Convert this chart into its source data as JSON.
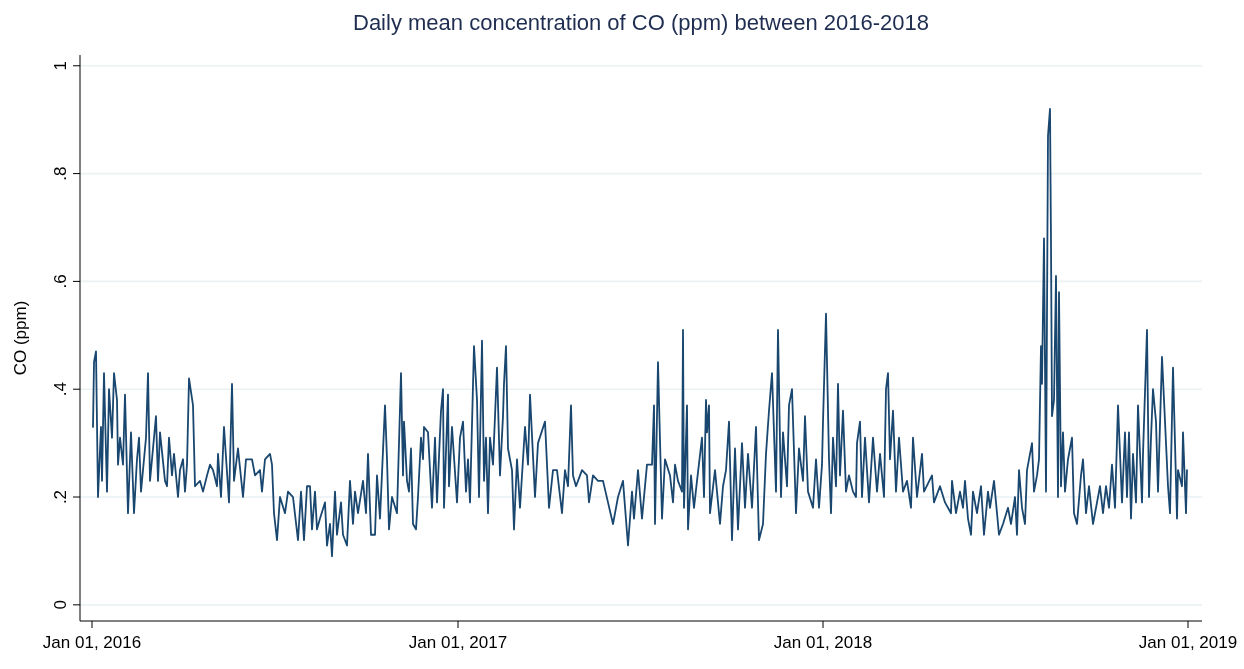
{
  "chart_data": {
    "type": "line",
    "title": "Daily mean concentration of CO (ppm) between 2016-2018",
    "ylabel": "CO (ppm)",
    "x": [
      "2016-01-02",
      "2016-01-03",
      "2016-01-05",
      "2016-01-07",
      "2016-01-10",
      "2016-01-11",
      "2016-01-13",
      "2016-01-16",
      "2016-01-18",
      "2016-01-21",
      "2016-01-23",
      "2016-01-26",
      "2016-01-27",
      "2016-01-29",
      "2016-02-01",
      "2016-02-03",
      "2016-02-06",
      "2016-02-09",
      "2016-02-12",
      "2016-02-15",
      "2016-02-17",
      "2016-02-19",
      "2016-02-24",
      "2016-02-26",
      "2016-02-28",
      "2016-03-02",
      "2016-03-05",
      "2016-03-07",
      "2016-03-09",
      "2016-03-14",
      "2016-03-16",
      "2016-03-18",
      "2016-03-21",
      "2016-03-23",
      "2016-03-27",
      "2016-03-29",
      "2016-04-01",
      "2016-04-03",
      "2016-04-05",
      "2016-04-07",
      "2016-04-11",
      "2016-04-13",
      "2016-04-18",
      "2016-04-21",
      "2016-04-25",
      "2016-04-28",
      "2016-05-01",
      "2016-05-05",
      "2016-05-06",
      "2016-05-09",
      "2016-05-12",
      "2016-05-17",
      "2016-05-20",
      "2016-05-22",
      "2016-05-26",
      "2016-05-31",
      "2016-06-03",
      "2016-06-09",
      "2016-06-12",
      "2016-06-17",
      "2016-06-19",
      "2016-06-22",
      "2016-06-27",
      "2016-06-29",
      "2016-07-01",
      "2016-07-04",
      "2016-07-07",
      "2016-07-12",
      "2016-07-15",
      "2016-07-20",
      "2016-07-25",
      "2016-07-28",
      "2016-07-31",
      "2016-08-03",
      "2016-08-06",
      "2016-08-08",
      "2016-08-11",
      "2016-08-13",
      "2016-08-16",
      "2016-08-21",
      "2016-08-23",
      "2016-08-26",
      "2016-08-28",
      "2016-08-31",
      "2016-09-02",
      "2016-09-06",
      "2016-09-08",
      "2016-09-12",
      "2016-09-15",
      "2016-09-18",
      "2016-09-20",
      "2016-09-23",
      "2016-09-28",
      "2016-10-01",
      "2016-10-03",
      "2016-10-06",
      "2016-10-10",
      "2016-10-12",
      "2016-10-15",
      "2016-10-20",
      "2016-10-22",
      "2016-10-24",
      "2016-10-27",
      "2016-11-01",
      "2016-11-05",
      "2016-11-07",
      "2016-11-08",
      "2016-11-11",
      "2016-11-13",
      "2016-11-15",
      "2016-11-17",
      "2016-11-20",
      "2016-11-22",
      "2016-11-25",
      "2016-11-27",
      "2016-11-28",
      "2016-12-02",
      "2016-12-06",
      "2016-12-09",
      "2016-12-11",
      "2016-12-15",
      "2016-12-17",
      "2016-12-18",
      "2016-12-22",
      "2016-12-23",
      "2016-12-26",
      "2016-12-31",
      "2017-01-03",
      "2017-01-06",
      "2017-01-09",
      "2017-01-11",
      "2017-01-13",
      "2017-01-17",
      "2017-01-20",
      "2017-01-22",
      "2017-01-25",
      "2017-01-27",
      "2017-01-29",
      "2017-01-31",
      "2017-02-02",
      "2017-02-05",
      "2017-02-09",
      "2017-02-12",
      "2017-02-15",
      "2017-02-16",
      "2017-02-18",
      "2017-02-20",
      "2017-02-24",
      "2017-02-26",
      "2017-03-01",
      "2017-03-04",
      "2017-03-09",
      "2017-03-12",
      "2017-03-14",
      "2017-03-19",
      "2017-03-22",
      "2017-03-29",
      "2017-04-02",
      "2017-04-06",
      "2017-04-10",
      "2017-04-15",
      "2017-04-18",
      "2017-04-21",
      "2017-04-24",
      "2017-04-26",
      "2017-04-29",
      "2017-05-05",
      "2017-05-10",
      "2017-05-12",
      "2017-05-16",
      "2017-05-21",
      "2017-05-26",
      "2017-05-31",
      "2017-06-05",
      "2017-06-10",
      "2017-06-15",
      "2017-06-20",
      "2017-06-24",
      "2017-06-26",
      "2017-06-30",
      "2017-07-04",
      "2017-07-09",
      "2017-07-14",
      "2017-07-16",
      "2017-07-17",
      "2017-07-20",
      "2017-07-24",
      "2017-07-27",
      "2017-08-01",
      "2017-08-04",
      "2017-08-06",
      "2017-08-09",
      "2017-08-13",
      "2017-08-14",
      "2017-08-15",
      "2017-08-18",
      "2017-08-19",
      "2017-08-22",
      "2017-08-25",
      "2017-08-28",
      "2017-09-02",
      "2017-09-04",
      "2017-09-06",
      "2017-09-07",
      "2017-09-09",
      "2017-09-10",
      "2017-09-15",
      "2017-09-20",
      "2017-09-23",
      "2017-09-26",
      "2017-09-29",
      "2017-10-02",
      "2017-10-05",
      "2017-10-08",
      "2017-10-12",
      "2017-10-15",
      "2017-10-18",
      "2017-10-22",
      "2017-10-26",
      "2017-10-29",
      "2017-11-02",
      "2017-11-05",
      "2017-11-08",
      "2017-11-11",
      "2017-11-15",
      "2017-11-17",
      "2017-11-20",
      "2017-11-22",
      "2017-11-26",
      "2017-11-28",
      "2017-12-01",
      "2017-12-05",
      "2017-12-08",
      "2017-12-12",
      "2017-12-14",
      "2017-12-17",
      "2017-12-22",
      "2017-12-25",
      "2017-12-28",
      "2017-12-31",
      "2018-01-01",
      "2018-01-04",
      "2018-01-07",
      "2018-01-09",
      "2018-01-11",
      "2018-01-14",
      "2018-01-16",
      "2018-01-18",
      "2018-01-21",
      "2018-01-24",
      "2018-01-27",
      "2018-01-31",
      "2018-02-03",
      "2018-02-04",
      "2018-02-07",
      "2018-02-09",
      "2018-02-12",
      "2018-02-16",
      "2018-02-20",
      "2018-02-24",
      "2018-02-27",
      "2018-03-03",
      "2018-03-05",
      "2018-03-07",
      "2018-03-09",
      "2018-03-12",
      "2018-03-15",
      "2018-03-18",
      "2018-03-22",
      "2018-03-26",
      "2018-03-30",
      "2018-04-01",
      "2018-04-05",
      "2018-04-10",
      "2018-04-12",
      "2018-04-20",
      "2018-04-22",
      "2018-04-28",
      "2018-05-03",
      "2018-05-09",
      "2018-05-10",
      "2018-05-14",
      "2018-05-18",
      "2018-05-21",
      "2018-05-23",
      "2018-05-26",
      "2018-05-29",
      "2018-05-31",
      "2018-06-04",
      "2018-06-08",
      "2018-06-11",
      "2018-06-15",
      "2018-06-17",
      "2018-06-21",
      "2018-06-26",
      "2018-06-30",
      "2018-07-05",
      "2018-07-08",
      "2018-07-12",
      "2018-07-14",
      "2018-07-16",
      "2018-07-19",
      "2018-07-22",
      "2018-07-24",
      "2018-07-29",
      "2018-07-31",
      "2018-08-03",
      "2018-08-05",
      "2018-08-07",
      "2018-08-08",
      "2018-08-10",
      "2018-08-12",
      "2018-08-14",
      "2018-08-16",
      "2018-08-17",
      "2018-08-18",
      "2018-08-20",
      "2018-08-22",
      "2018-08-24",
      "2018-08-25",
      "2018-08-27",
      "2018-08-29",
      "2018-08-31",
      "2018-09-03",
      "2018-09-07",
      "2018-09-09",
      "2018-09-12",
      "2018-09-16",
      "2018-09-18",
      "2018-09-21",
      "2018-09-24",
      "2018-09-28",
      "2018-10-01",
      "2018-10-05",
      "2018-10-08",
      "2018-10-11",
      "2018-10-14",
      "2018-10-17",
      "2018-10-20",
      "2018-10-23",
      "2018-10-27",
      "2018-10-30",
      "2018-11-01",
      "2018-11-03",
      "2018-11-05",
      "2018-11-07",
      "2018-11-10",
      "2018-11-12",
      "2018-11-16",
      "2018-11-17",
      "2018-11-21",
      "2018-11-23",
      "2018-11-25",
      "2018-11-27",
      "2018-11-30",
      "2018-12-02",
      "2018-12-06",
      "2018-12-09",
      "2018-12-12",
      "2018-12-14",
      "2018-12-17",
      "2018-12-21",
      "2018-12-22",
      "2018-12-26",
      "2018-12-27",
      "2018-12-30",
      "2018-12-31"
    ],
    "series": [
      {
        "color": "#1a476f",
        "values": [
          0.33,
          0.45,
          0.47,
          0.2,
          0.33,
          0.23,
          0.43,
          0.21,
          0.4,
          0.31,
          0.43,
          0.38,
          0.26,
          0.31,
          0.26,
          0.39,
          0.17,
          0.32,
          0.17,
          0.27,
          0.31,
          0.21,
          0.31,
          0.43,
          0.23,
          0.29,
          0.35,
          0.23,
          0.32,
          0.23,
          0.22,
          0.31,
          0.24,
          0.28,
          0.2,
          0.25,
          0.27,
          0.21,
          0.26,
          0.42,
          0.37,
          0.22,
          0.23,
          0.21,
          0.24,
          0.26,
          0.25,
          0.22,
          0.28,
          0.2,
          0.33,
          0.19,
          0.41,
          0.23,
          0.29,
          0.2,
          0.27,
          0.27,
          0.24,
          0.25,
          0.21,
          0.27,
          0.28,
          0.26,
          0.17,
          0.12,
          0.2,
          0.17,
          0.21,
          0.2,
          0.12,
          0.21,
          0.12,
          0.22,
          0.22,
          0.14,
          0.21,
          0.14,
          0.16,
          0.19,
          0.11,
          0.15,
          0.09,
          0.21,
          0.13,
          0.19,
          0.13,
          0.11,
          0.23,
          0.15,
          0.21,
          0.17,
          0.23,
          0.17,
          0.28,
          0.13,
          0.13,
          0.24,
          0.16,
          0.37,
          0.27,
          0.14,
          0.2,
          0.17,
          0.43,
          0.24,
          0.34,
          0.23,
          0.21,
          0.29,
          0.15,
          0.14,
          0.2,
          0.31,
          0.27,
          0.33,
          0.32,
          0.18,
          0.31,
          0.19,
          0.36,
          0.4,
          0.18,
          0.39,
          0.22,
          0.33,
          0.19,
          0.31,
          0.34,
          0.21,
          0.27,
          0.19,
          0.48,
          0.38,
          0.2,
          0.49,
          0.23,
          0.31,
          0.17,
          0.31,
          0.26,
          0.44,
          0.24,
          0.35,
          0.41,
          0.48,
          0.29,
          0.25,
          0.14,
          0.27,
          0.18,
          0.33,
          0.26,
          0.39,
          0.2,
          0.3,
          0.34,
          0.18,
          0.25,
          0.25,
          0.17,
          0.25,
          0.22,
          0.37,
          0.24,
          0.22,
          0.25,
          0.24,
          0.19,
          0.24,
          0.23,
          0.23,
          0.19,
          0.15,
          0.2,
          0.23,
          0.11,
          0.21,
          0.16,
          0.25,
          0.16,
          0.26,
          0.26,
          0.37,
          0.15,
          0.45,
          0.16,
          0.27,
          0.24,
          0.19,
          0.26,
          0.23,
          0.21,
          0.51,
          0.18,
          0.37,
          0.14,
          0.24,
          0.18,
          0.23,
          0.31,
          0.2,
          0.38,
          0.32,
          0.37,
          0.17,
          0.25,
          0.15,
          0.22,
          0.25,
          0.34,
          0.12,
          0.29,
          0.14,
          0.3,
          0.18,
          0.28,
          0.18,
          0.33,
          0.12,
          0.15,
          0.28,
          0.36,
          0.43,
          0.21,
          0.51,
          0.2,
          0.32,
          0.22,
          0.37,
          0.4,
          0.17,
          0.29,
          0.23,
          0.35,
          0.21,
          0.18,
          0.27,
          0.18,
          0.26,
          0.34,
          0.54,
          0.27,
          0.17,
          0.31,
          0.22,
          0.41,
          0.24,
          0.36,
          0.21,
          0.24,
          0.21,
          0.2,
          0.3,
          0.34,
          0.2,
          0.31,
          0.19,
          0.31,
          0.21,
          0.28,
          0.2,
          0.4,
          0.43,
          0.27,
          0.36,
          0.21,
          0.31,
          0.21,
          0.23,
          0.18,
          0.31,
          0.2,
          0.28,
          0.21,
          0.24,
          0.19,
          0.22,
          0.19,
          0.17,
          0.23,
          0.17,
          0.21,
          0.18,
          0.23,
          0.16,
          0.13,
          0.21,
          0.17,
          0.22,
          0.13,
          0.21,
          0.18,
          0.23,
          0.13,
          0.15,
          0.18,
          0.15,
          0.2,
          0.13,
          0.25,
          0.18,
          0.15,
          0.25,
          0.3,
          0.21,
          0.24,
          0.27,
          0.48,
          0.41,
          0.68,
          0.21,
          0.87,
          0.92,
          0.67,
          0.35,
          0.38,
          0.61,
          0.2,
          0.58,
          0.22,
          0.32,
          0.21,
          0.27,
          0.31,
          0.17,
          0.15,
          0.24,
          0.27,
          0.17,
          0.22,
          0.15,
          0.18,
          0.22,
          0.17,
          0.22,
          0.18,
          0.26,
          0.18,
          0.37,
          0.19,
          0.32,
          0.2,
          0.32,
          0.16,
          0.28,
          0.19,
          0.37,
          0.19,
          0.28,
          0.51,
          0.2,
          0.31,
          0.4,
          0.34,
          0.21,
          0.46,
          0.34,
          0.22,
          0.17,
          0.44,
          0.16,
          0.25,
          0.22,
          0.32,
          0.17,
          0.25
        ]
      }
    ],
    "xlim": [
      "2015-12-20",
      "2019-01-15"
    ],
    "xticks": [
      {
        "value": "2016-01-01",
        "label": "Jan 01, 2016"
      },
      {
        "value": "2017-01-01",
        "label": "Jan 01, 2017"
      },
      {
        "value": "2018-01-01",
        "label": "Jan 01, 2018"
      },
      {
        "value": "2019-01-01",
        "label": "Jan 01, 2019"
      }
    ],
    "ylim": [
      -0.03,
      1.02
    ],
    "yticks": [
      0,
      {
        "value": 0.2,
        "label": ".2"
      },
      {
        "value": 0.4,
        "label": ".4"
      },
      {
        "value": 0.6,
        "label": ".6"
      },
      {
        "value": 0.8,
        "label": ".8"
      },
      1
    ],
    "grid": "y"
  }
}
